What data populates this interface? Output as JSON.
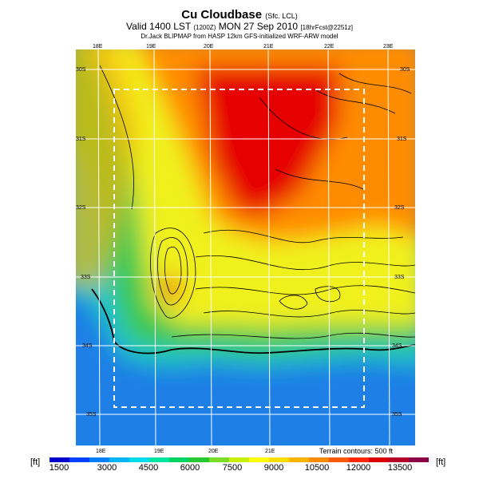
{
  "title": {
    "main": "Cu Cloudbase",
    "main_note": "(Sfc. LCL)",
    "valid": "Valid 1400 LST",
    "valid_note": "(1200Z)",
    "date": "MON 27 Sep 2010",
    "forecast_note": "[18hrFcst@2251z]",
    "credit": "Dr.Jack BLIPMAP from HASP 12km GFS-initialized WRF-ARW model"
  },
  "map": {
    "lon_labels_top": [
      "18E",
      "19E",
      "20E",
      "21E",
      "22E",
      "23E"
    ],
    "lon_labels_bottom": [
      "18E",
      "19E",
      "20E",
      "21E"
    ],
    "lat_labels_left": [
      "30S",
      "31S",
      "32S",
      "33S",
      "34S",
      "35S"
    ],
    "lat_labels_right": [
      "30S",
      "31S",
      "32S",
      "33S",
      "34S",
      "35S"
    ],
    "terrain_note": "Terrain contours: 500 ft"
  },
  "colorbar": {
    "unit_left": "[ft]",
    "unit_right": "[ft]",
    "ticks": [
      "1500",
      "3000",
      "4500",
      "6000",
      "7500",
      "9000",
      "10500",
      "12000",
      "13500"
    ],
    "colors": [
      "#0000c8",
      "#0040ff",
      "#0080ff",
      "#00b4ff",
      "#00dcf0",
      "#00e6a0",
      "#00d264",
      "#28c832",
      "#78dc28",
      "#c8f000",
      "#ffff00",
      "#ffdc00",
      "#ffb400",
      "#ff8c00",
      "#ff5a00",
      "#ff2800",
      "#dc0000",
      "#b40028",
      "#8c0046"
    ]
  },
  "legend_colors": {
    "ocean": "#1e7fe6",
    "coast": "#1ac8c8",
    "low": "#3cc850",
    "mid": "#f0f01e",
    "high": "#ff8c00",
    "peak": "#e60000"
  }
}
